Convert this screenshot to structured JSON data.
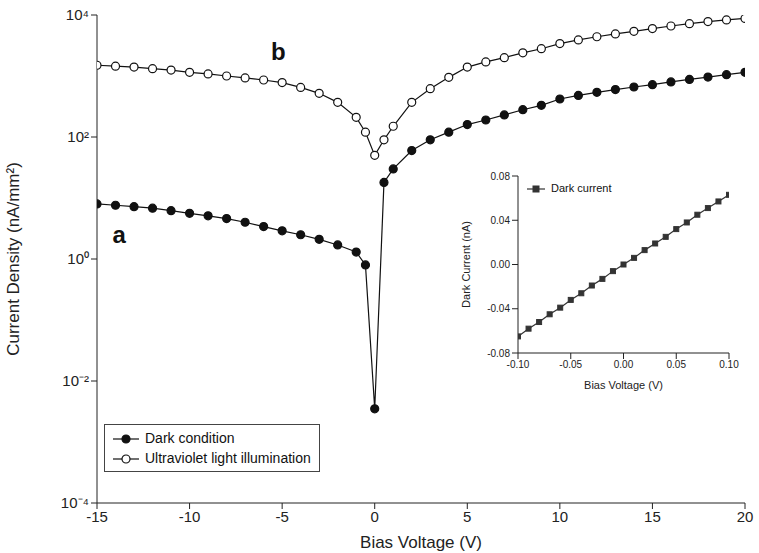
{
  "chart_data": [
    {
      "type": "line",
      "xlabel": "Bias Voltage (V)",
      "ylabel": "Current Density (nA/mm²)",
      "log": "y",
      "legend": "lower left",
      "x": [
        -15,
        -14,
        -13,
        -12,
        -11,
        -10,
        -9,
        -8,
        -7,
        -6,
        -5,
        -4,
        -3,
        -2,
        -1,
        -0.5,
        0,
        0.5,
        1,
        2,
        3,
        4,
        5,
        6,
        7,
        8,
        9,
        10,
        11,
        12,
        13,
        14,
        15,
        16,
        17,
        18,
        19,
        20
      ],
      "series": [
        {
          "name": "Dark condition",
          "color": "#111111",
          "marker": "filled_circle",
          "line_style": "solid",
          "values": [
            8,
            7.6,
            7.2,
            6.8,
            6.2,
            5.6,
            5.1,
            4.6,
            4.0,
            3.4,
            2.9,
            2.5,
            2.1,
            1.7,
            1.3,
            0.8,
            0.0035,
            18,
            30,
            60,
            90,
            120,
            160,
            190,
            230,
            280,
            330,
            420,
            480,
            540,
            600,
            660,
            720,
            800,
            880,
            960,
            1050,
            1150
          ]
        },
        {
          "name": "Ultraviolet light illumination",
          "color": "#111111",
          "marker": "open_circle",
          "line_style": "solid",
          "values": [
            1500,
            1450,
            1400,
            1320,
            1250,
            1150,
            1080,
            1000,
            930,
            860,
            780,
            650,
            520,
            370,
            210,
            120,
            50,
            90,
            150,
            370,
            620,
            950,
            1400,
            1700,
            2000,
            2400,
            2800,
            3400,
            3900,
            4400,
            4900,
            5400,
            6000,
            6600,
            7200,
            7800,
            8300,
            8800
          ]
        }
      ],
      "xlim": [
        -15,
        20
      ],
      "xticks": [
        -15,
        -10,
        -5,
        0,
        5,
        10,
        15,
        20
      ],
      "ylim": [
        0.0001,
        10000
      ],
      "yticks": [
        {
          "value": 0.0001,
          "label": "10⁻⁴"
        },
        {
          "value": 0.01,
          "label": "10⁻²"
        },
        {
          "value": 1,
          "label": "10⁰"
        },
        {
          "value": 100,
          "label": "10²"
        },
        {
          "value": 10000,
          "label": "10⁴"
        }
      ],
      "annotations": [
        {
          "text": "a",
          "x": -13.8,
          "y": 2.5
        },
        {
          "text": "b",
          "x": -5.2,
          "y": 2500
        }
      ]
    },
    {
      "type": "line",
      "xlabel": "Bias Voltage (V)",
      "ylabel": "Dark Current (nA)",
      "legend": "upper left",
      "x": [
        -0.1,
        -0.09,
        -0.08,
        -0.07,
        -0.06,
        -0.05,
        -0.04,
        -0.03,
        -0.02,
        -0.01,
        0,
        0.01,
        0.02,
        0.03,
        0.04,
        0.05,
        0.06,
        0.07,
        0.08,
        0.09,
        0.1
      ],
      "series": [
        {
          "name": "Dark current",
          "color": "#333333",
          "marker": "square",
          "line_style": "solid",
          "values": [
            -0.065,
            -0.058,
            -0.052,
            -0.045,
            -0.039,
            -0.032,
            -0.026,
            -0.019,
            -0.013,
            -0.006,
            0.0,
            0.006,
            0.013,
            0.019,
            0.025,
            0.032,
            0.038,
            0.045,
            0.051,
            0.057,
            0.063
          ]
        }
      ],
      "xlim": [
        -0.1,
        0.1
      ],
      "xticks": [
        {
          "value": -0.1,
          "label": "-0.10"
        },
        {
          "value": -0.05,
          "label": "-0.05"
        },
        {
          "value": 0,
          "label": "0.00"
        },
        {
          "value": 0.05,
          "label": "0.05"
        },
        {
          "value": 0.1,
          "label": "0.10"
        }
      ],
      "ylim": [
        -0.08,
        0.08
      ],
      "yticks": [
        {
          "value": -0.08,
          "label": "-0.08"
        },
        {
          "value": -0.04,
          "label": "-0.04"
        },
        {
          "value": 0,
          "label": "0.00"
        },
        {
          "value": 0.04,
          "label": "0.04"
        },
        {
          "value": 0.08,
          "label": "0.08"
        }
      ]
    }
  ]
}
